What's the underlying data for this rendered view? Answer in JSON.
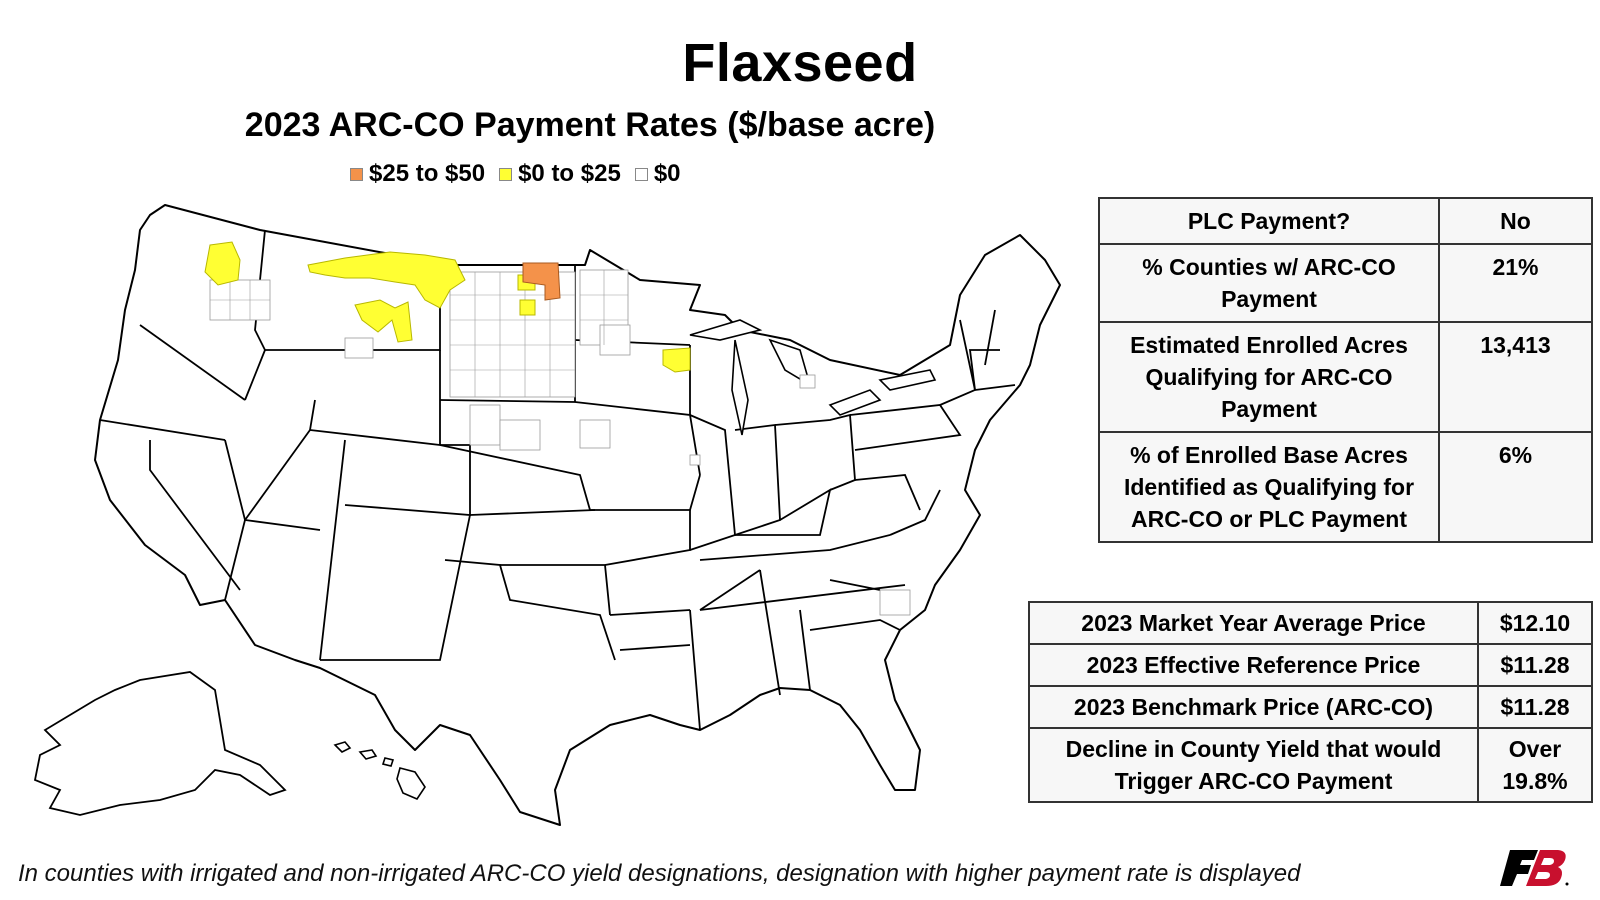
{
  "title": "Flaxseed",
  "subtitle": "2023 ARC-CO Payment Rates ($/base acre)",
  "legend": [
    {
      "label": "$25 to $50",
      "color": "#f4924a"
    },
    {
      "label": "$0 to $25",
      "color": "#ffff33"
    },
    {
      "label": "$0",
      "color": "#ffffff"
    }
  ],
  "summary_table": [
    {
      "label": "PLC Payment?",
      "value": "No"
    },
    {
      "label": "% Counties w/ ARC-CO Payment",
      "value": "21%"
    },
    {
      "label": "Estimated Enrolled Acres Qualifying for ARC-CO Payment",
      "value": "13,413"
    },
    {
      "label": "% of Enrolled Base Acres Identified as Qualifying for ARC-CO or PLC Payment",
      "value": "6%"
    }
  ],
  "price_table": [
    {
      "label": "2023 Market Year Average Price",
      "value": "$12.10"
    },
    {
      "label": "2023 Effective Reference Price",
      "value": "$11.28"
    },
    {
      "label": "2023 Benchmark Price (ARC-CO)",
      "value": "$11.28"
    },
    {
      "label": "Decline in County Yield that would Trigger ARC-CO Payment",
      "value": "Over 19.8%"
    }
  ],
  "footnote": "In counties with irrigated and non-irrigated ARC-CO yield designations, designation with higher payment rate is displayed",
  "logo": {
    "text": "FB",
    "icon": "farm-bureau-logo"
  }
}
